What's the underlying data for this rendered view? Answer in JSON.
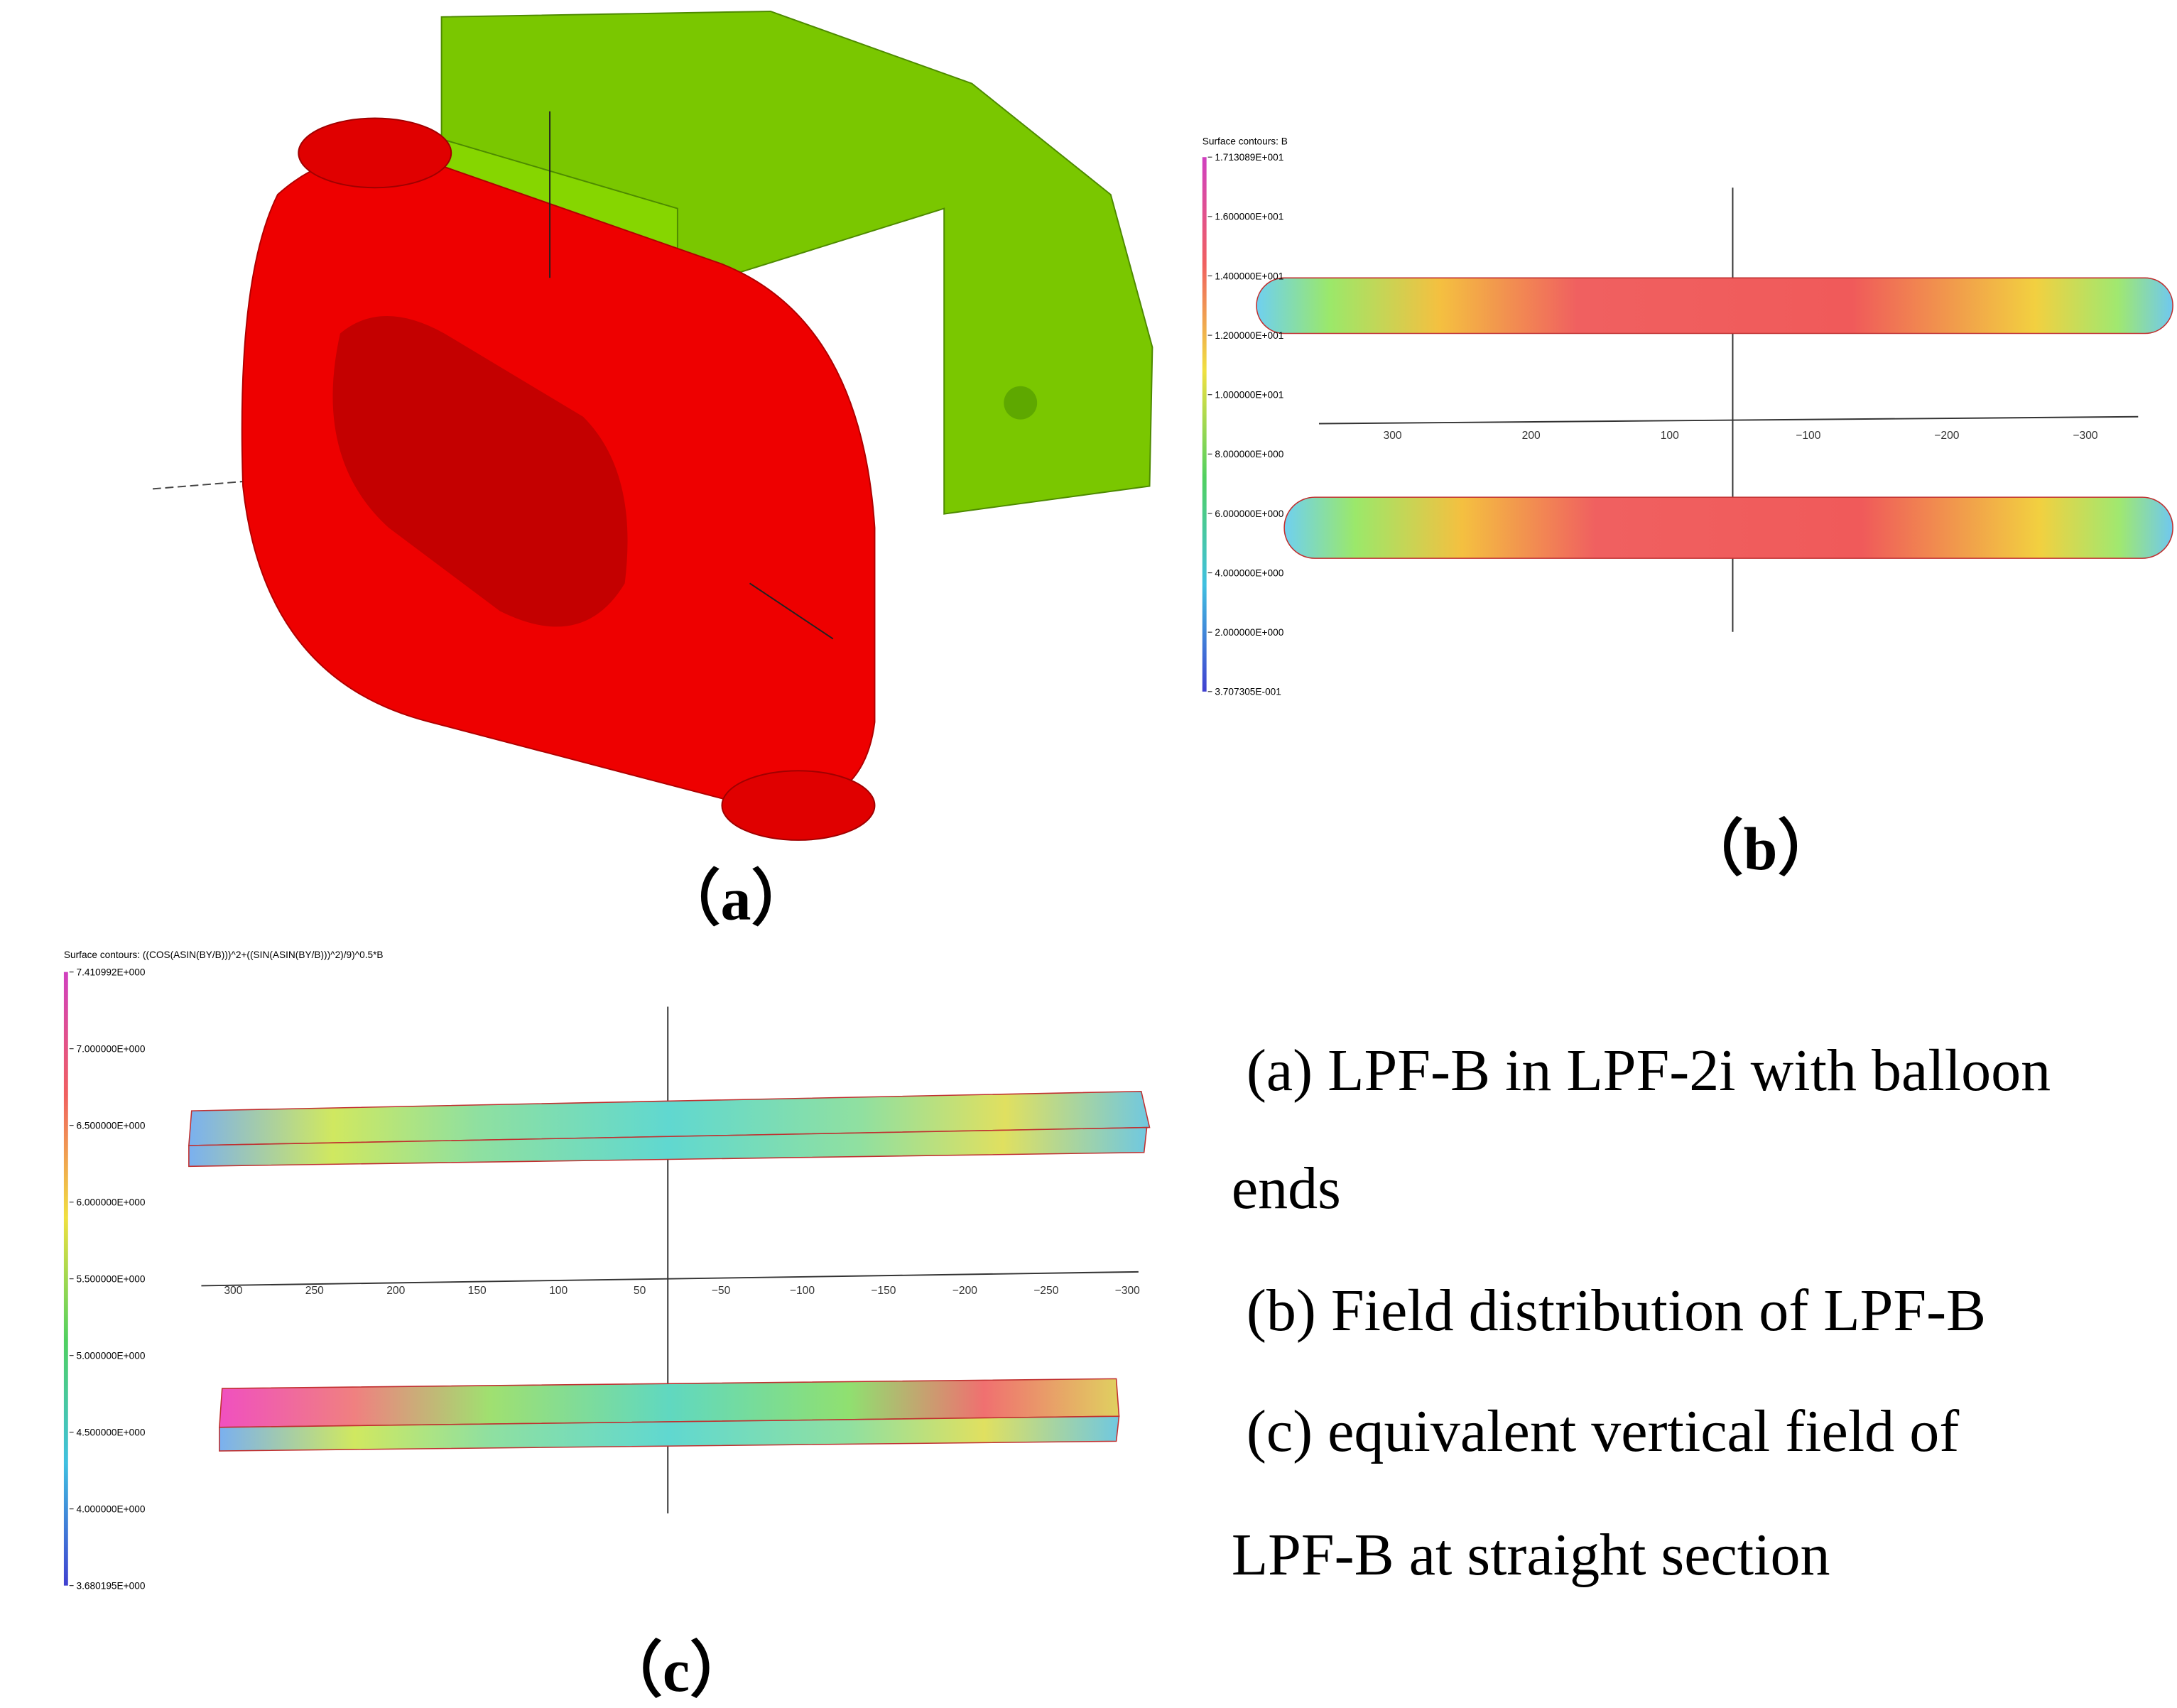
{
  "panels": [
    {
      "label": "（a）"
    },
    {
      "label": "（b）",
      "colorbar": {
        "title": "Surface contours: B",
        "labels": [
          "1.713089E+001",
          "1.600000E+001",
          "1.400000E+001",
          "1.200000E+001",
          "1.000000E+001",
          "8.000000E+000",
          "6.000000E+000",
          "4.000000E+000",
          "2.000000E+000",
          "3.707305E-001"
        ]
      },
      "x_axis_labels": [
        "300",
        "200",
        "100",
        "−100",
        "−200",
        "−300"
      ]
    },
    {
      "label": "（c）",
      "colorbar": {
        "title": "Surface contours: ((COS(ASIN(BY/B)))^2+((SIN(ASIN(BY/B)))^2)/9)^0.5*B",
        "labels": [
          "7.410992E+000",
          "7.000000E+000",
          "6.500000E+000",
          "6.000000E+000",
          "5.500000E+000",
          "5.000000E+000",
          "4.500000E+000",
          "4.000000E+000",
          "3.680195E+000"
        ]
      },
      "x_axis_labels": [
        "300",
        "250",
        "200",
        "150",
        "100",
        "50",
        "−50",
        "−100",
        "−150",
        "−200",
        "−250",
        "−300"
      ]
    }
  ],
  "caption": [
    " (a) LPF-B in LPF-2i with balloon",
    "ends",
    " (b) Field distribution of LPF-B",
    " (c) equivalent vertical field of",
    "LPF-B at straight section"
  ]
}
